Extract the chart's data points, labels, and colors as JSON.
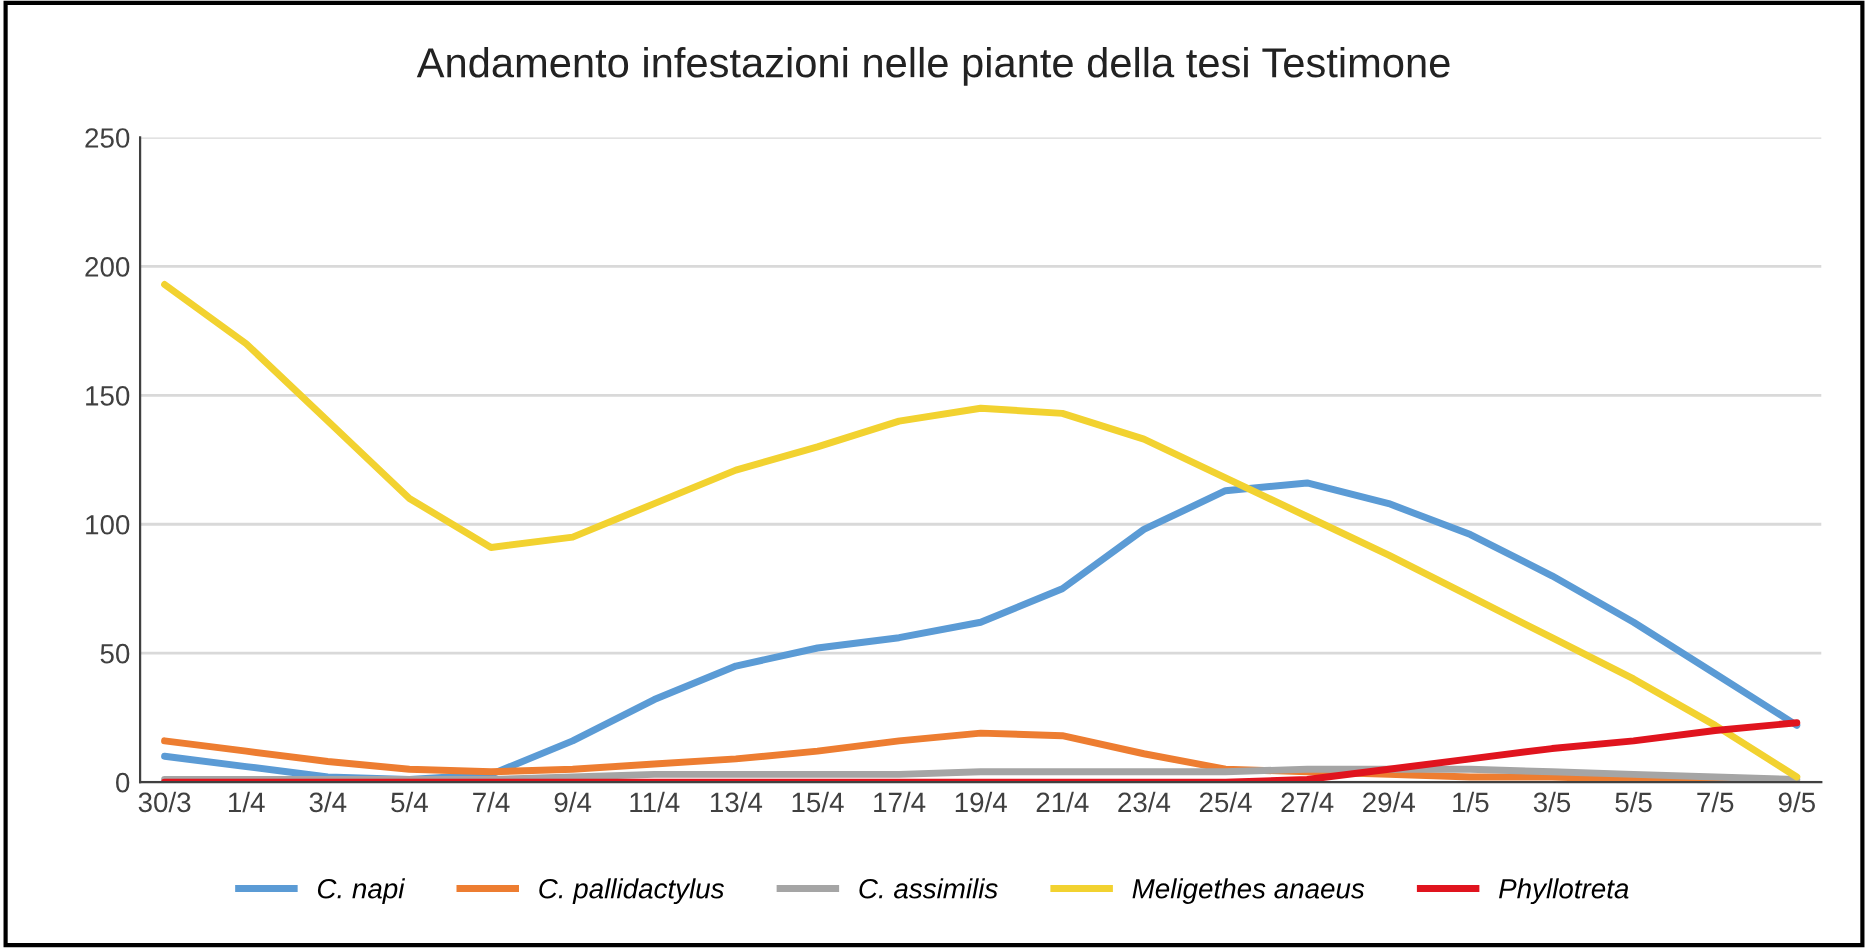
{
  "chart_data": {
    "type": "line",
    "title": "Andamento infestazioni nelle piante della tesi Testimone",
    "categories": [
      "30/3",
      "1/4",
      "3/4",
      "5/4",
      "7/4",
      "9/4",
      "11/4",
      "13/4",
      "15/4",
      "17/4",
      "19/4",
      "21/4",
      "23/4",
      "25/4",
      "27/4",
      "29/4",
      "1/5",
      "3/5",
      "5/5",
      "7/5",
      "9/5"
    ],
    "series": [
      {
        "name": "C. napi",
        "color": "#5b9bd5",
        "values": [
          10,
          6,
          2,
          1,
          3,
          16,
          32,
          45,
          52,
          56,
          62,
          75,
          98,
          113,
          116,
          108,
          96,
          80,
          62,
          42,
          22
        ]
      },
      {
        "name": "C. pallidactylus",
        "color": "#ed7d31",
        "values": [
          16,
          12,
          8,
          5,
          4,
          5,
          7,
          9,
          12,
          16,
          19,
          18,
          11,
          5,
          4,
          3,
          2,
          2,
          1,
          1,
          0
        ]
      },
      {
        "name": "C. assimilis",
        "color": "#a5a5a5",
        "values": [
          1,
          1,
          1,
          1,
          1,
          2,
          3,
          3,
          3,
          3,
          4,
          4,
          4,
          4,
          5,
          5,
          5,
          4,
          3,
          2,
          1
        ]
      },
      {
        "name": "Meligethes anaeus",
        "color": "#f2d230",
        "values": [
          193,
          170,
          140,
          110,
          91,
          95,
          108,
          121,
          130,
          140,
          145,
          143,
          133,
          118,
          103,
          88,
          72,
          56,
          40,
          22,
          2
        ]
      },
      {
        "name": "Phyllotreta",
        "color": "#e0141e",
        "values": [
          0,
          0,
          0,
          0,
          0,
          0,
          0,
          0,
          0,
          0,
          0,
          0,
          0,
          0,
          1,
          5,
          9,
          13,
          16,
          20,
          23
        ]
      }
    ],
    "ylim": [
      0,
      250
    ],
    "yticks": [
      0,
      50,
      100,
      150,
      200,
      250
    ],
    "grid": "y",
    "legend": "bottom",
    "marker": "none",
    "line_style": "solid"
  }
}
